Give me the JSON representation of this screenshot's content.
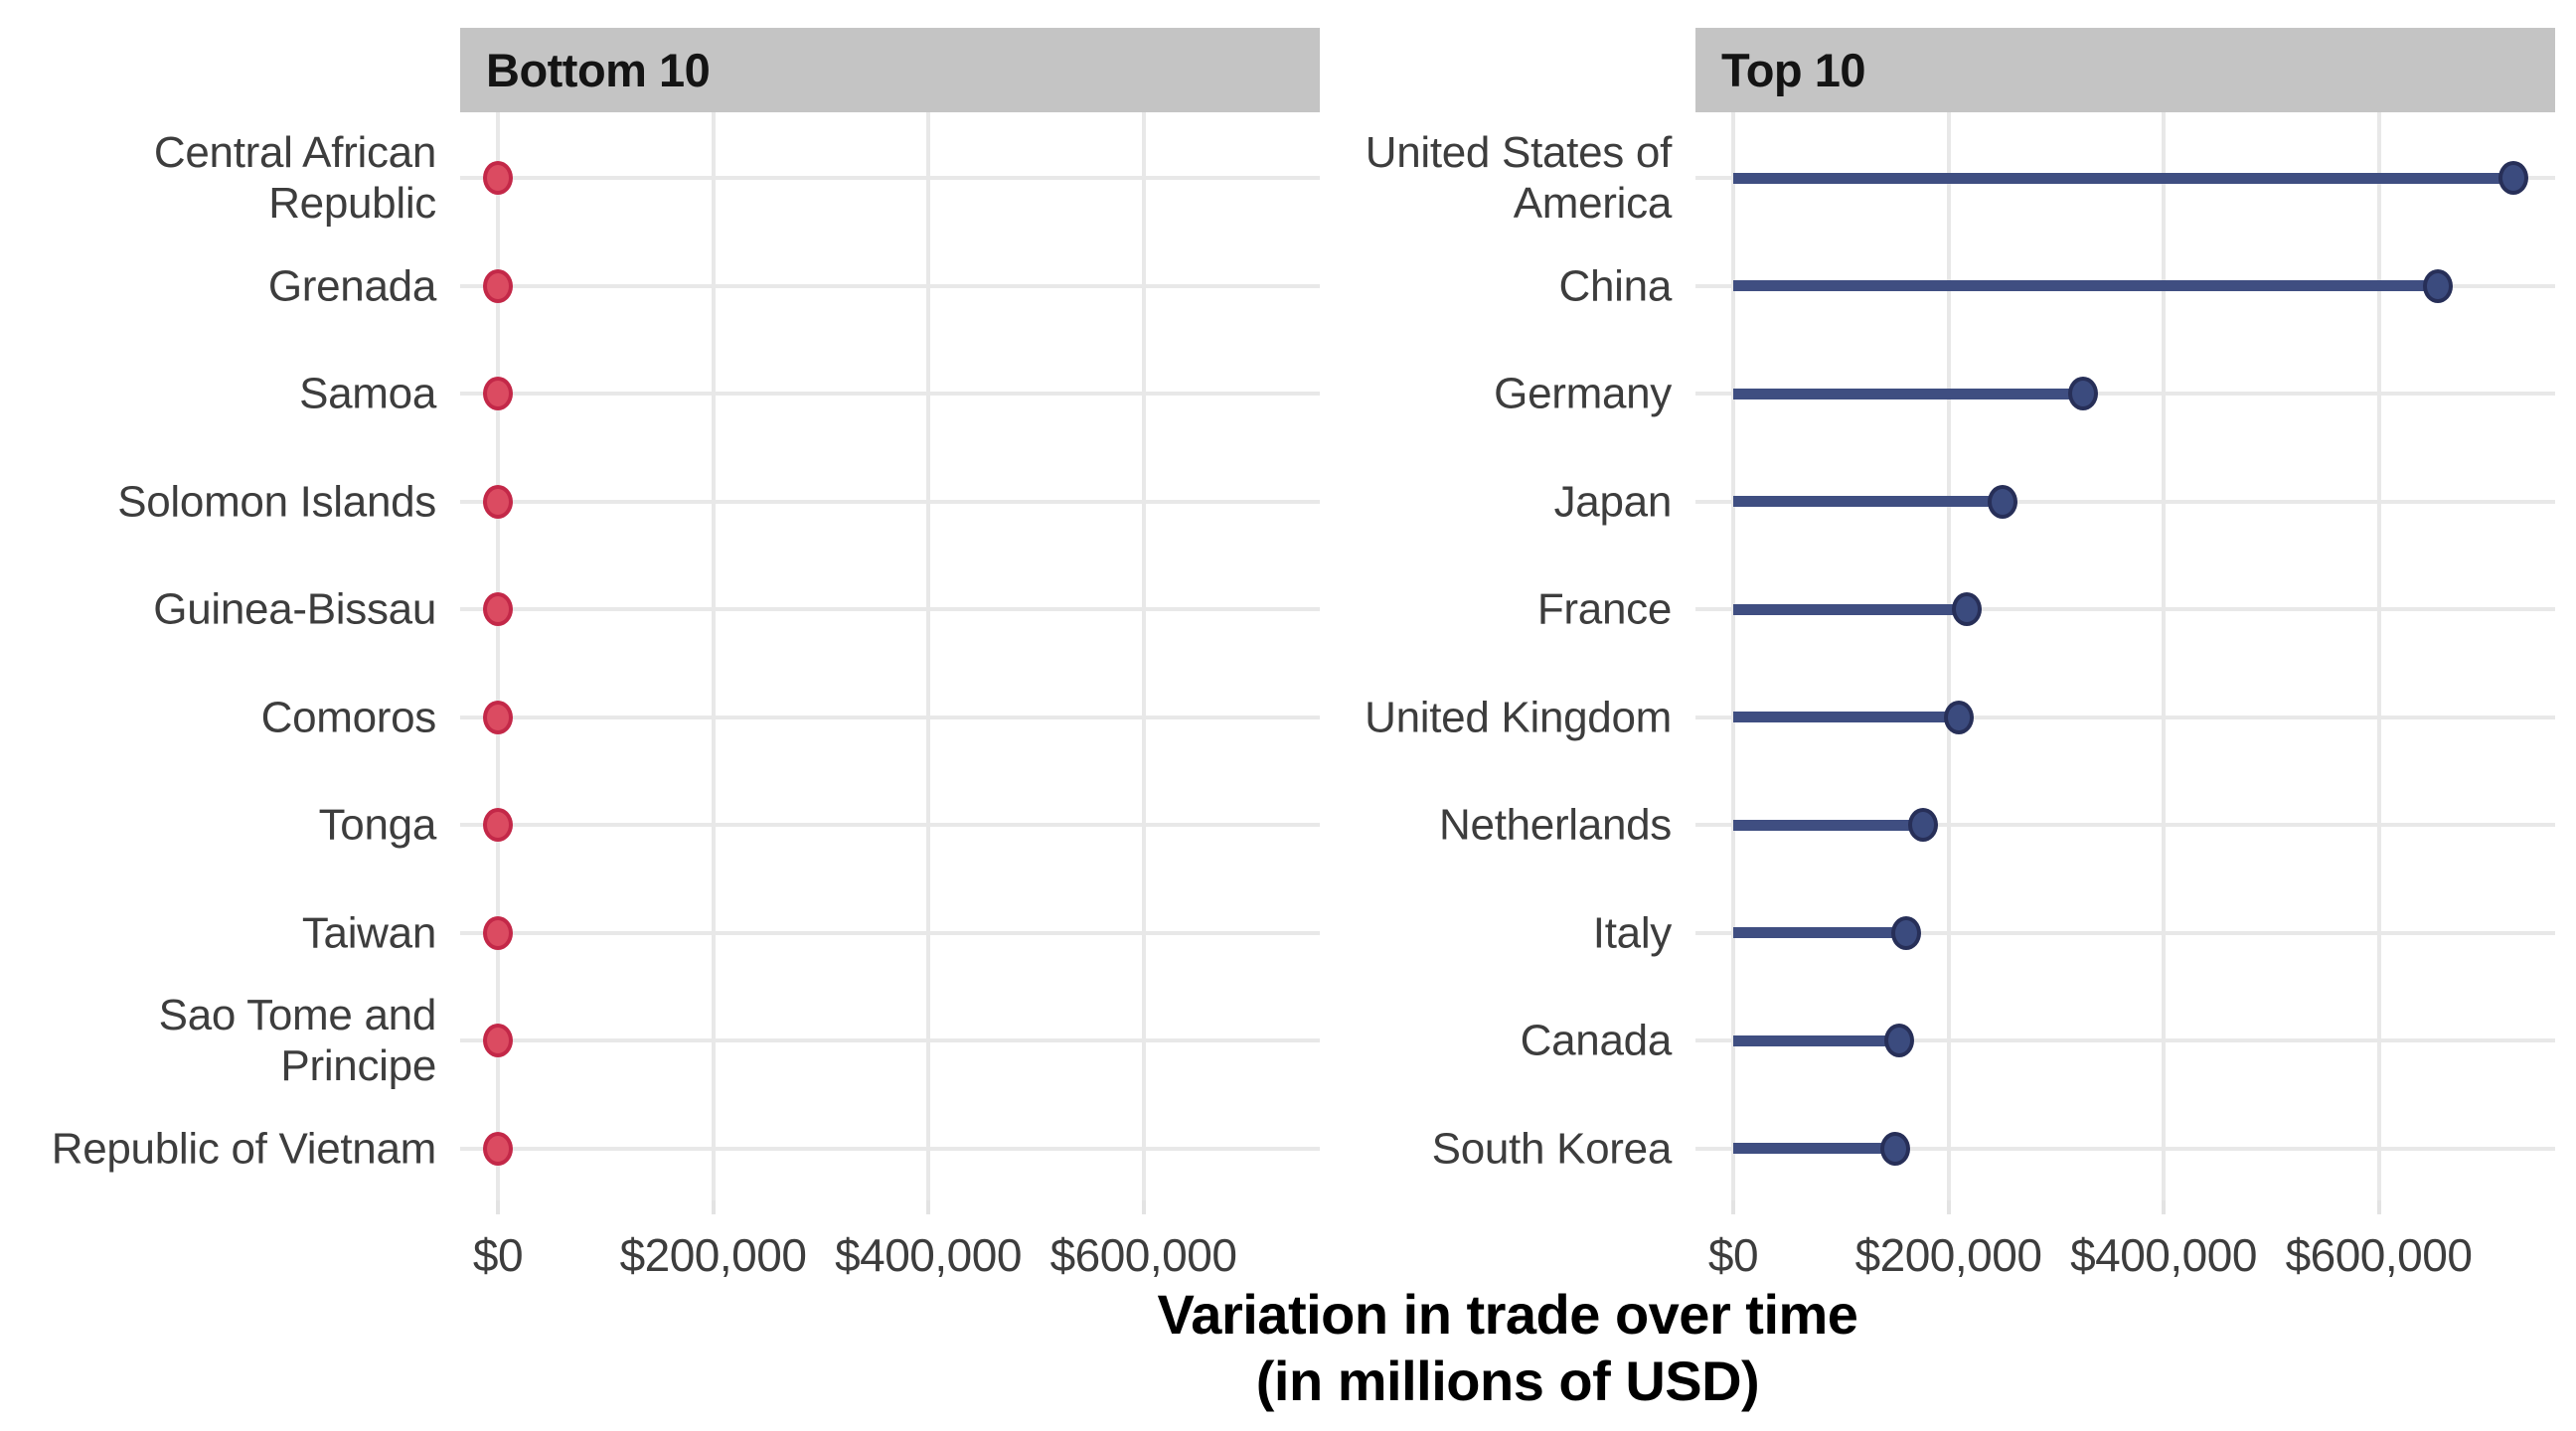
{
  "figure_title": "Variation in trade over time (in millions of USD)",
  "chart_data": {
    "type": "scatter",
    "subtype": "faceted lollipop / Cleveland dot plot, horizontal",
    "title": "",
    "xlabel_lines": [
      "Variation in trade over time",
      "(in millions of USD)"
    ],
    "x_tick_labels": [
      "$0",
      "$200,000",
      "$400,000",
      "$600,000"
    ],
    "x_tick_values": [
      0,
      200000,
      400000,
      600000
    ],
    "xlim": [
      -37000,
      768000
    ],
    "grid": "major vertical gridlines and one horizontal gridline per category; no minor gridlines; no axis lines; white panel background",
    "legend": "none",
    "strip_background": "#c4c4c4",
    "gridline_color": "#e8e8e8",
    "text_color": "#3d3d3d",
    "panels": [
      {
        "strip_label": "Bottom 10",
        "point_fill": "#db4b61",
        "point_stroke": "#c32848",
        "stem_color": "#db4b61",
        "rows": [
          {
            "country": "Central African Republic",
            "label": "Central African\nRepublic",
            "value": 0
          },
          {
            "country": "Grenada",
            "label": "Grenada",
            "value": 0
          },
          {
            "country": "Samoa",
            "label": "Samoa",
            "value": 0
          },
          {
            "country": "Solomon Islands",
            "label": "Solomon Islands",
            "value": 0
          },
          {
            "country": "Guinea-Bissau",
            "label": "Guinea-Bissau",
            "value": 0
          },
          {
            "country": "Comoros",
            "label": "Comoros",
            "value": 0
          },
          {
            "country": "Tonga",
            "label": "Tonga",
            "value": 0
          },
          {
            "country": "Taiwan",
            "label": "Taiwan",
            "value": 0
          },
          {
            "country": "Sao Tome and Principe",
            "label": "Sao Tome and\nPrincipe",
            "value": 0
          },
          {
            "country": "Republic of Vietnam",
            "label": "Republic of Vietnam",
            "value": 0
          }
        ]
      },
      {
        "strip_label": "Top 10",
        "point_fill": "#3b4b7e",
        "point_stroke": "#272f58",
        "stem_color": "#3f4e81",
        "rows": [
          {
            "country": "United States of America",
            "label": "United States of\nAmerica",
            "value": 725000
          },
          {
            "country": "China",
            "label": "China",
            "value": 655000
          },
          {
            "country": "Germany",
            "label": "Germany",
            "value": 325000
          },
          {
            "country": "Japan",
            "label": "Japan",
            "value": 250000
          },
          {
            "country": "France",
            "label": "France",
            "value": 217000
          },
          {
            "country": "United Kingdom",
            "label": "United Kingdom",
            "value": 210000
          },
          {
            "country": "Netherlands",
            "label": "Netherlands",
            "value": 176000
          },
          {
            "country": "Italy",
            "label": "Italy",
            "value": 161000
          },
          {
            "country": "Canada",
            "label": "Canada",
            "value": 154000
          },
          {
            "country": "South Korea",
            "label": "South Korea",
            "value": 151000
          }
        ]
      }
    ],
    "values_note": "Bottom-10 dots sit on the $0 line; Top-10 values estimated from $200,000 gridline spacing"
  }
}
